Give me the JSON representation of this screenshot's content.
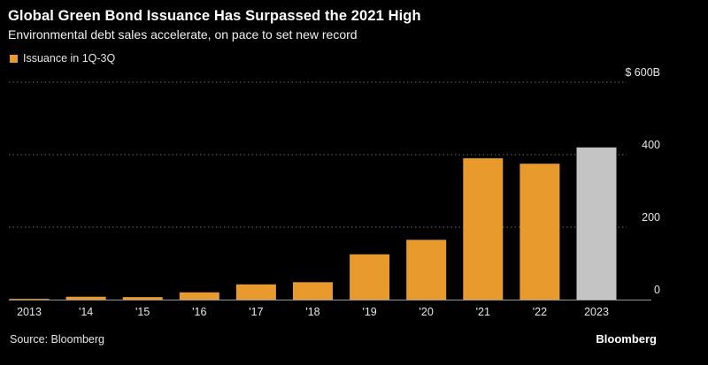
{
  "chart_data": {
    "type": "bar",
    "title": "Global Green Bond Issuance Has Surpassed the 2021 High",
    "subtitle": "Environmental debt sales accelerate, on pace to set new record",
    "legend": [
      {
        "name": "Issuance in 1Q-3Q",
        "color": "#e89a2c"
      }
    ],
    "categories": [
      "2013",
      "'14",
      "'15",
      "'16",
      "'17",
      "'18",
      "'19",
      "'20",
      "'21",
      "'22",
      "2023"
    ],
    "values": [
      2,
      8,
      7,
      20,
      42,
      48,
      125,
      165,
      390,
      375,
      420
    ],
    "bar_colors": [
      "#e89a2c",
      "#e89a2c",
      "#e89a2c",
      "#e89a2c",
      "#e89a2c",
      "#e89a2c",
      "#e89a2c",
      "#e89a2c",
      "#e89a2c",
      "#e89a2c",
      "#c4c4c4"
    ],
    "y_ticks": [
      {
        "value": 0,
        "label": "0"
      },
      {
        "value": 200,
        "label": "200"
      },
      {
        "value": 400,
        "label": "400"
      },
      {
        "value": 600,
        "label": "$ 600B"
      }
    ],
    "ylim": [
      0,
      600
    ],
    "grid": true,
    "grid_style": "dotted",
    "y_axis_side": "right",
    "legend_position": "top-left"
  },
  "footer": {
    "source": "Source: Bloomberg",
    "brand": "Bloomberg"
  },
  "colors": {
    "background": "#000000",
    "bar": "#e89a2c",
    "bar_highlight": "#c4c4c4",
    "grid": "#6e6e6e",
    "axis": "#9a9a9a",
    "text": "#ffffff"
  }
}
